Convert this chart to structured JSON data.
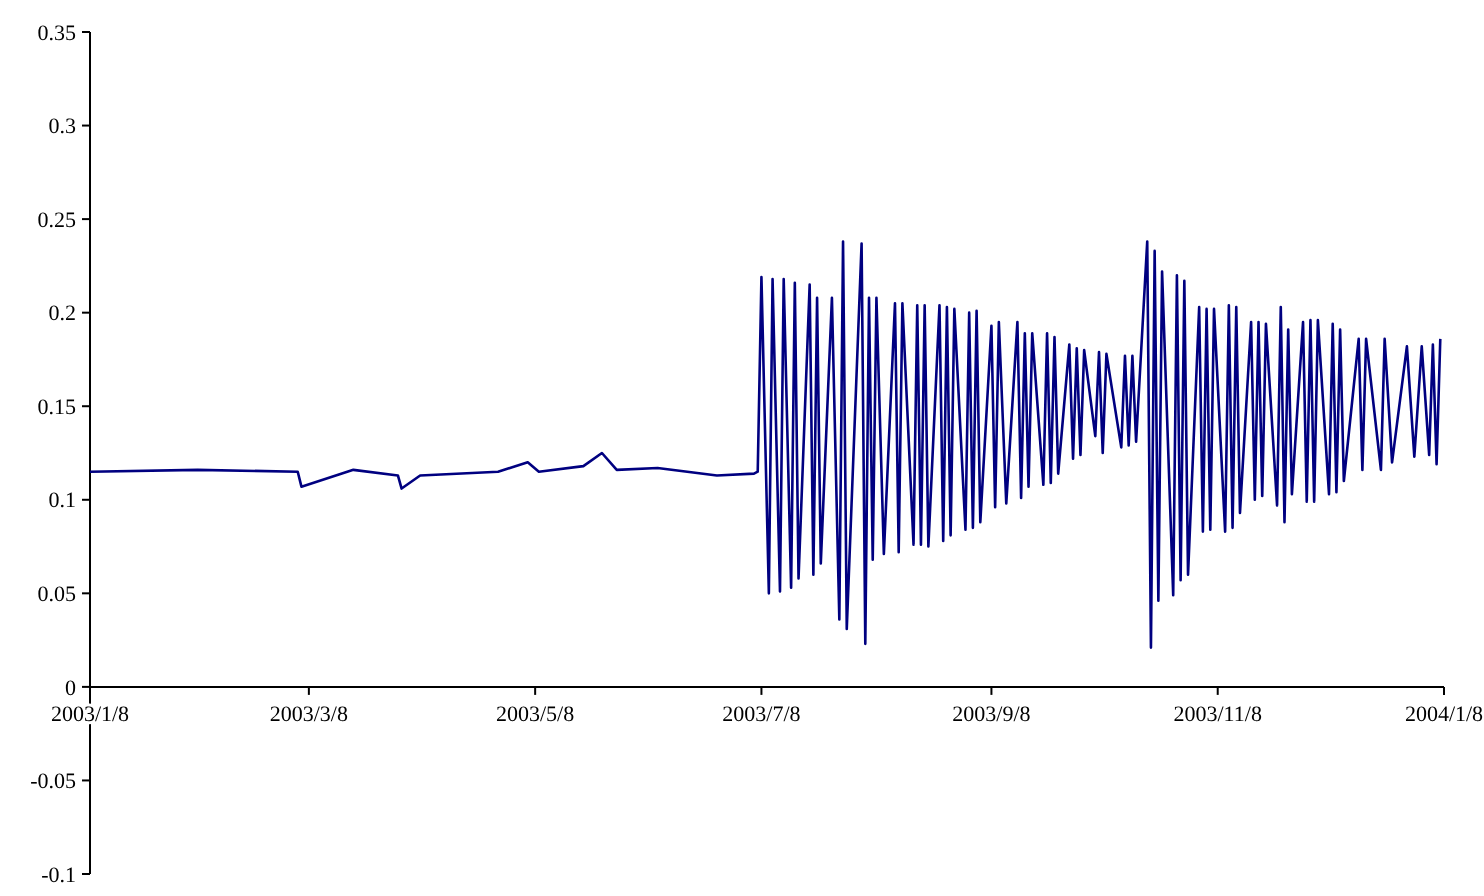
{
  "chart_data": {
    "type": "line",
    "x": [
      "2003-01-08",
      "2003-02-06",
      "2003-03-05",
      "2003-03-06",
      "2003-03-20",
      "2003-04-01",
      "2003-04-02",
      "2003-04-07",
      "2003-04-28",
      "2003-05-06",
      "2003-05-09",
      "2003-05-21",
      "2003-05-26",
      "2003-05-30",
      "2003-06-10",
      "2003-06-26",
      "2003-07-06",
      "2003-07-07",
      "2003-07-08",
      "2003-07-10",
      "2003-07-11",
      "2003-07-13",
      "2003-07-14",
      "2003-07-16",
      "2003-07-17",
      "2003-07-18",
      "2003-07-21",
      "2003-07-22",
      "2003-07-23",
      "2003-07-24",
      "2003-07-27",
      "2003-07-29",
      "2003-07-30",
      "2003-07-31",
      "2003-08-04",
      "2003-08-05",
      "2003-08-06",
      "2003-08-07",
      "2003-08-08",
      "2003-08-10",
      "2003-08-13",
      "2003-08-14",
      "2003-08-15",
      "2003-08-18",
      "2003-08-19",
      "2003-08-20",
      "2003-08-21",
      "2003-08-22",
      "2003-08-25",
      "2003-08-26",
      "2003-08-27",
      "2003-08-28",
      "2003-08-29",
      "2003-09-01",
      "2003-09-02",
      "2003-09-03",
      "2003-09-04",
      "2003-09-05",
      "2003-09-08",
      "2003-09-09",
      "2003-09-10",
      "2003-09-12",
      "2003-09-15",
      "2003-09-16",
      "2003-09-17",
      "2003-09-18",
      "2003-09-19",
      "2003-09-22",
      "2003-09-23",
      "2003-09-24",
      "2003-09-25",
      "2003-09-26",
      "2003-09-29",
      "2003-09-30",
      "2003-10-01",
      "2003-10-02",
      "2003-10-03",
      "2003-10-06",
      "2003-10-07",
      "2003-10-08",
      "2003-10-09",
      "2003-10-13",
      "2003-10-14",
      "2003-10-15",
      "2003-10-16",
      "2003-10-17",
      "2003-10-20",
      "2003-10-21",
      "2003-10-22",
      "2003-10-23",
      "2003-10-24",
      "2003-10-27",
      "2003-10-28",
      "2003-10-29",
      "2003-10-30",
      "2003-10-31",
      "2003-11-03",
      "2003-11-04",
      "2003-11-05",
      "2003-11-06",
      "2003-11-07",
      "2003-11-10",
      "2003-11-11",
      "2003-11-12",
      "2003-11-13",
      "2003-11-14",
      "2003-11-17",
      "2003-11-18",
      "2003-11-19",
      "2003-11-20",
      "2003-11-21",
      "2003-11-24",
      "2003-11-25",
      "2003-11-26",
      "2003-11-27",
      "2003-11-28",
      "2003-12-01",
      "2003-12-02",
      "2003-12-03",
      "2003-12-04",
      "2003-12-05",
      "2003-12-08",
      "2003-12-09",
      "2003-12-10",
      "2003-12-11",
      "2003-12-12",
      "2003-12-16",
      "2003-12-17",
      "2003-12-18",
      "2003-12-22",
      "2003-12-23",
      "2003-12-25",
      "2003-12-29",
      "2003-12-31",
      "2004-01-02",
      "2004-01-04",
      "2004-01-05",
      "2004-01-06",
      "2004-01-07"
    ],
    "series": [
      {
        "color": "#000080",
        "values": [
          0.115,
          0.116,
          0.115,
          0.107,
          0.116,
          0.113,
          0.106,
          0.113,
          0.115,
          0.12,
          0.115,
          0.118,
          0.125,
          0.116,
          0.117,
          0.113,
          0.114,
          0.115,
          0.219,
          0.05,
          0.218,
          0.051,
          0.218,
          0.053,
          0.216,
          0.058,
          0.215,
          0.06,
          0.208,
          0.066,
          0.208,
          0.036,
          0.238,
          0.031,
          0.237,
          0.023,
          0.208,
          0.068,
          0.208,
          0.071,
          0.205,
          0.072,
          0.205,
          0.076,
          0.204,
          0.076,
          0.204,
          0.075,
          0.204,
          0.078,
          0.203,
          0.081,
          0.202,
          0.084,
          0.2,
          0.085,
          0.201,
          0.088,
          0.193,
          0.096,
          0.195,
          0.098,
          0.195,
          0.101,
          0.189,
          0.107,
          0.189,
          0.108,
          0.189,
          0.109,
          0.187,
          0.114,
          0.183,
          0.122,
          0.181,
          0.124,
          0.18,
          0.134,
          0.179,
          0.125,
          0.178,
          0.128,
          0.177,
          0.129,
          0.177,
          0.131,
          0.238,
          0.021,
          0.233,
          0.046,
          0.222,
          0.049,
          0.22,
          0.057,
          0.217,
          0.06,
          0.203,
          0.083,
          0.202,
          0.084,
          0.202,
          0.083,
          0.204,
          0.085,
          0.203,
          0.093,
          0.195,
          0.1,
          0.195,
          0.102,
          0.194,
          0.097,
          0.203,
          0.088,
          0.191,
          0.103,
          0.195,
          0.099,
          0.196,
          0.099,
          0.196,
          0.103,
          0.194,
          0.104,
          0.191,
          0.11,
          0.186,
          0.116,
          0.186,
          0.116,
          0.186,
          0.12,
          0.182,
          0.123,
          0.182,
          0.124,
          0.183,
          0.119,
          0.186
        ]
      }
    ],
    "xlim": [
      "2003-01-08",
      "2004-01-08"
    ],
    "xticks": [
      {
        "value": "2003-01-08",
        "label": "2003/1/8"
      },
      {
        "value": "2003-03-08",
        "label": "2003/3/8"
      },
      {
        "value": "2003-05-08",
        "label": "2003/5/8"
      },
      {
        "value": "2003-07-08",
        "label": "2003/7/8"
      },
      {
        "value": "2003-09-08",
        "label": "2003/9/8"
      },
      {
        "value": "2003-11-08",
        "label": "2003/11/8"
      },
      {
        "value": "2004-01-08",
        "label": "2004/1/8"
      }
    ],
    "ylim": [
      -0.1,
      0.35
    ],
    "yticks": [
      -0.1,
      -0.05,
      0,
      0.05,
      0.1,
      0.15,
      0.2,
      0.25,
      0.3,
      0.35
    ],
    "grid": false,
    "marker": "none",
    "line_style": "solid"
  }
}
